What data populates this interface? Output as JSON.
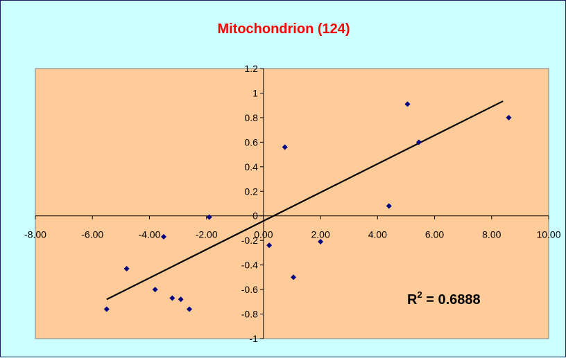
{
  "colors": {
    "background": "#ccffff",
    "plot_area": "#ffcc99",
    "title": "#ff0000",
    "points": "#000080",
    "trendline": "#000000"
  },
  "chart_data": {
    "type": "scatter",
    "title": "Mitochondrion (124)",
    "xlabel": "",
    "ylabel": "",
    "xlim": [
      -8,
      10
    ],
    "ylim": [
      -1,
      1.2
    ],
    "x_ticks": [
      -8,
      -6,
      -4,
      -2,
      0,
      2,
      4,
      6,
      8,
      10
    ],
    "x_tick_labels": [
      "-8.00",
      "-6.00",
      "-4.00",
      "-2.00",
      "0.00",
      "2.00",
      "4.00",
      "6.00",
      "8.00",
      "10.00"
    ],
    "y_ticks": [
      -1,
      -0.8,
      -0.6,
      -0.4,
      -0.2,
      0,
      0.2,
      0.4,
      0.6,
      0.8,
      1,
      1.2
    ],
    "y_tick_labels": [
      "-1",
      "-0.8",
      "-0.6",
      "-0.4",
      "-0.2",
      "0",
      "0.2",
      "0.4",
      "0.6",
      "0.8",
      "1",
      "1.2"
    ],
    "grid": false,
    "legend": "none",
    "points": [
      {
        "x": -5.5,
        "y": -0.76
      },
      {
        "x": -4.8,
        "y": -0.43
      },
      {
        "x": -3.8,
        "y": -0.6
      },
      {
        "x": -3.5,
        "y": -0.17
      },
      {
        "x": -3.2,
        "y": -0.67
      },
      {
        "x": -2.9,
        "y": -0.68
      },
      {
        "x": -2.6,
        "y": -0.76
      },
      {
        "x": -1.9,
        "y": -0.01
      },
      {
        "x": 0.2,
        "y": -0.24
      },
      {
        "x": 0.75,
        "y": 0.56
      },
      {
        "x": 1.05,
        "y": -0.5
      },
      {
        "x": 2.0,
        "y": -0.21
      },
      {
        "x": 4.4,
        "y": 0.08
      },
      {
        "x": 5.05,
        "y": 0.91
      },
      {
        "x": 5.45,
        "y": 0.6
      },
      {
        "x": 8.6,
        "y": 0.8
      }
    ],
    "trendline": {
      "type": "linear",
      "x_range": [
        -5.5,
        8.4
      ],
      "slope": 0.1162,
      "intercept": -0.0415
    },
    "annotation": {
      "base": "R",
      "superscript": "2",
      "value_text": " = 0.6888"
    }
  }
}
